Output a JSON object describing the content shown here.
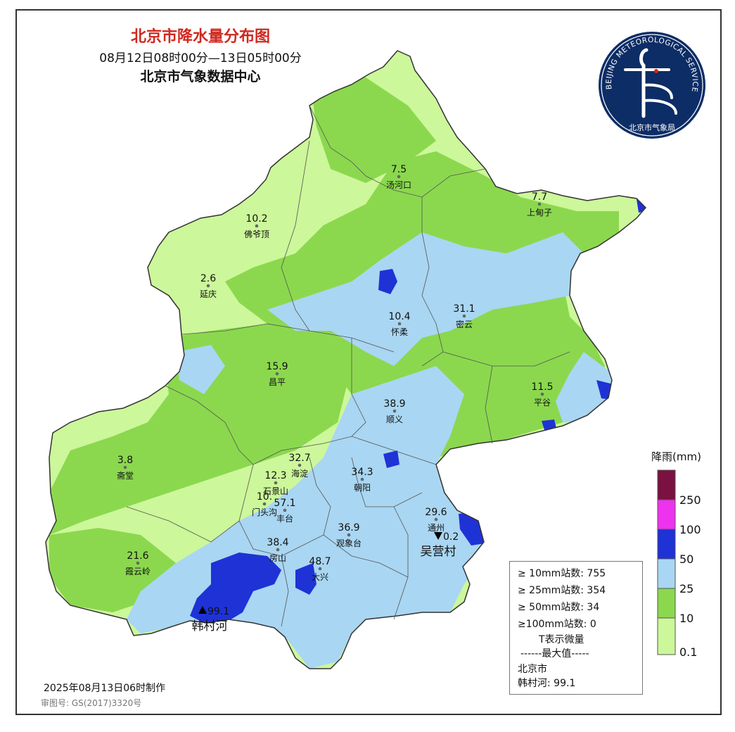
{
  "header": {
    "title": "北京市降水量分布图",
    "period": "08月12日08时00分—13日05时00分",
    "source": "北京市气象数据中心"
  },
  "logo": {
    "ring_text": "BEIJING METEOROLOGICAL SERVICE",
    "name": "北京市气象局"
  },
  "colors": {
    "c_0_1": "#ccf79a",
    "c_10": "#8bd84e",
    "c_25": "#a9d6f2",
    "c_50": "#1f32d6",
    "c_100": "#ee33ee",
    "c_250": "#7a1140"
  },
  "legend": {
    "title": "降雨(mm)",
    "ticks": [
      "250",
      "100",
      "50",
      "25",
      "10",
      "0.1"
    ]
  },
  "stations": [
    {
      "name": "汤河口",
      "value": "7.5"
    },
    {
      "name": "上甸子",
      "value": "7.7"
    },
    {
      "name": "佛爷顶",
      "value": "10.2"
    },
    {
      "name": "延庆",
      "value": "2.6"
    },
    {
      "name": "怀柔",
      "value": "10.4"
    },
    {
      "name": "密云",
      "value": "31.1"
    },
    {
      "name": "昌平",
      "value": "15.9"
    },
    {
      "name": "平谷",
      "value": "11.5"
    },
    {
      "name": "顺义",
      "value": "38.9"
    },
    {
      "name": "斋堂",
      "value": "3.8"
    },
    {
      "name": "海淀",
      "value": "32.7"
    },
    {
      "name": "石景山",
      "value": "12.3"
    },
    {
      "name": "朝阳",
      "value": "34.3"
    },
    {
      "name": "门头沟",
      "value": "10."
    },
    {
      "name": "丰台",
      "value": "57.1"
    },
    {
      "name": "通州",
      "value": "29.6"
    },
    {
      "name": "观象台",
      "value": "36.9"
    },
    {
      "name": "吴营村",
      "value": "0.2"
    },
    {
      "name": "霞云岭",
      "value": "21.6"
    },
    {
      "name": "房山",
      "value": "38.4"
    },
    {
      "name": "大兴",
      "value": "48.7"
    },
    {
      "name": "韩村河",
      "value": "99.1"
    }
  ],
  "stats": {
    "line1": "≥ 10mm站数: 755",
    "line2": "≥ 25mm站数: 354",
    "line3": "≥ 50mm站数: 34",
    "line4": "≥100mm站数: 0",
    "line5": "T表示微量",
    "line6": "------最大值-----",
    "line7": "北京市",
    "line8": "韩村河: 99.1"
  },
  "footer": {
    "made": "2025年08月13日06时制作",
    "review": "审图号: GS(2017)3320号"
  }
}
